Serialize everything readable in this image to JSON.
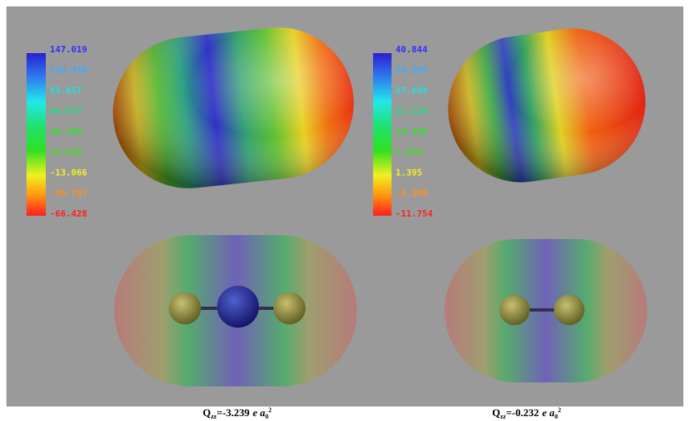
{
  "colorbars": [
    {
      "labels": [
        "147.019",
        "120.338",
        "93.657",
        "66.977",
        "40.296",
        "13.615",
        "-13.066",
        "-39.747",
        "-66.428"
      ]
    },
    {
      "labels": [
        "40.844",
        "34.269",
        "27.694",
        "21.120",
        "14.545",
        "7.970",
        "1.395",
        "-5.180",
        "-11.754"
      ]
    }
  ],
  "captions": [
    {
      "symbol": "Q",
      "symbol_sub": "zz",
      "value": "=-3.239",
      "unit": "e a",
      "unit_sub": "0",
      "unit_sup": "2"
    },
    {
      "symbol": "Q",
      "symbol_sub": "zz",
      "value": "=-0.232",
      "unit": "e a",
      "unit_sub": "0",
      "unit_sup": "2"
    }
  ]
}
